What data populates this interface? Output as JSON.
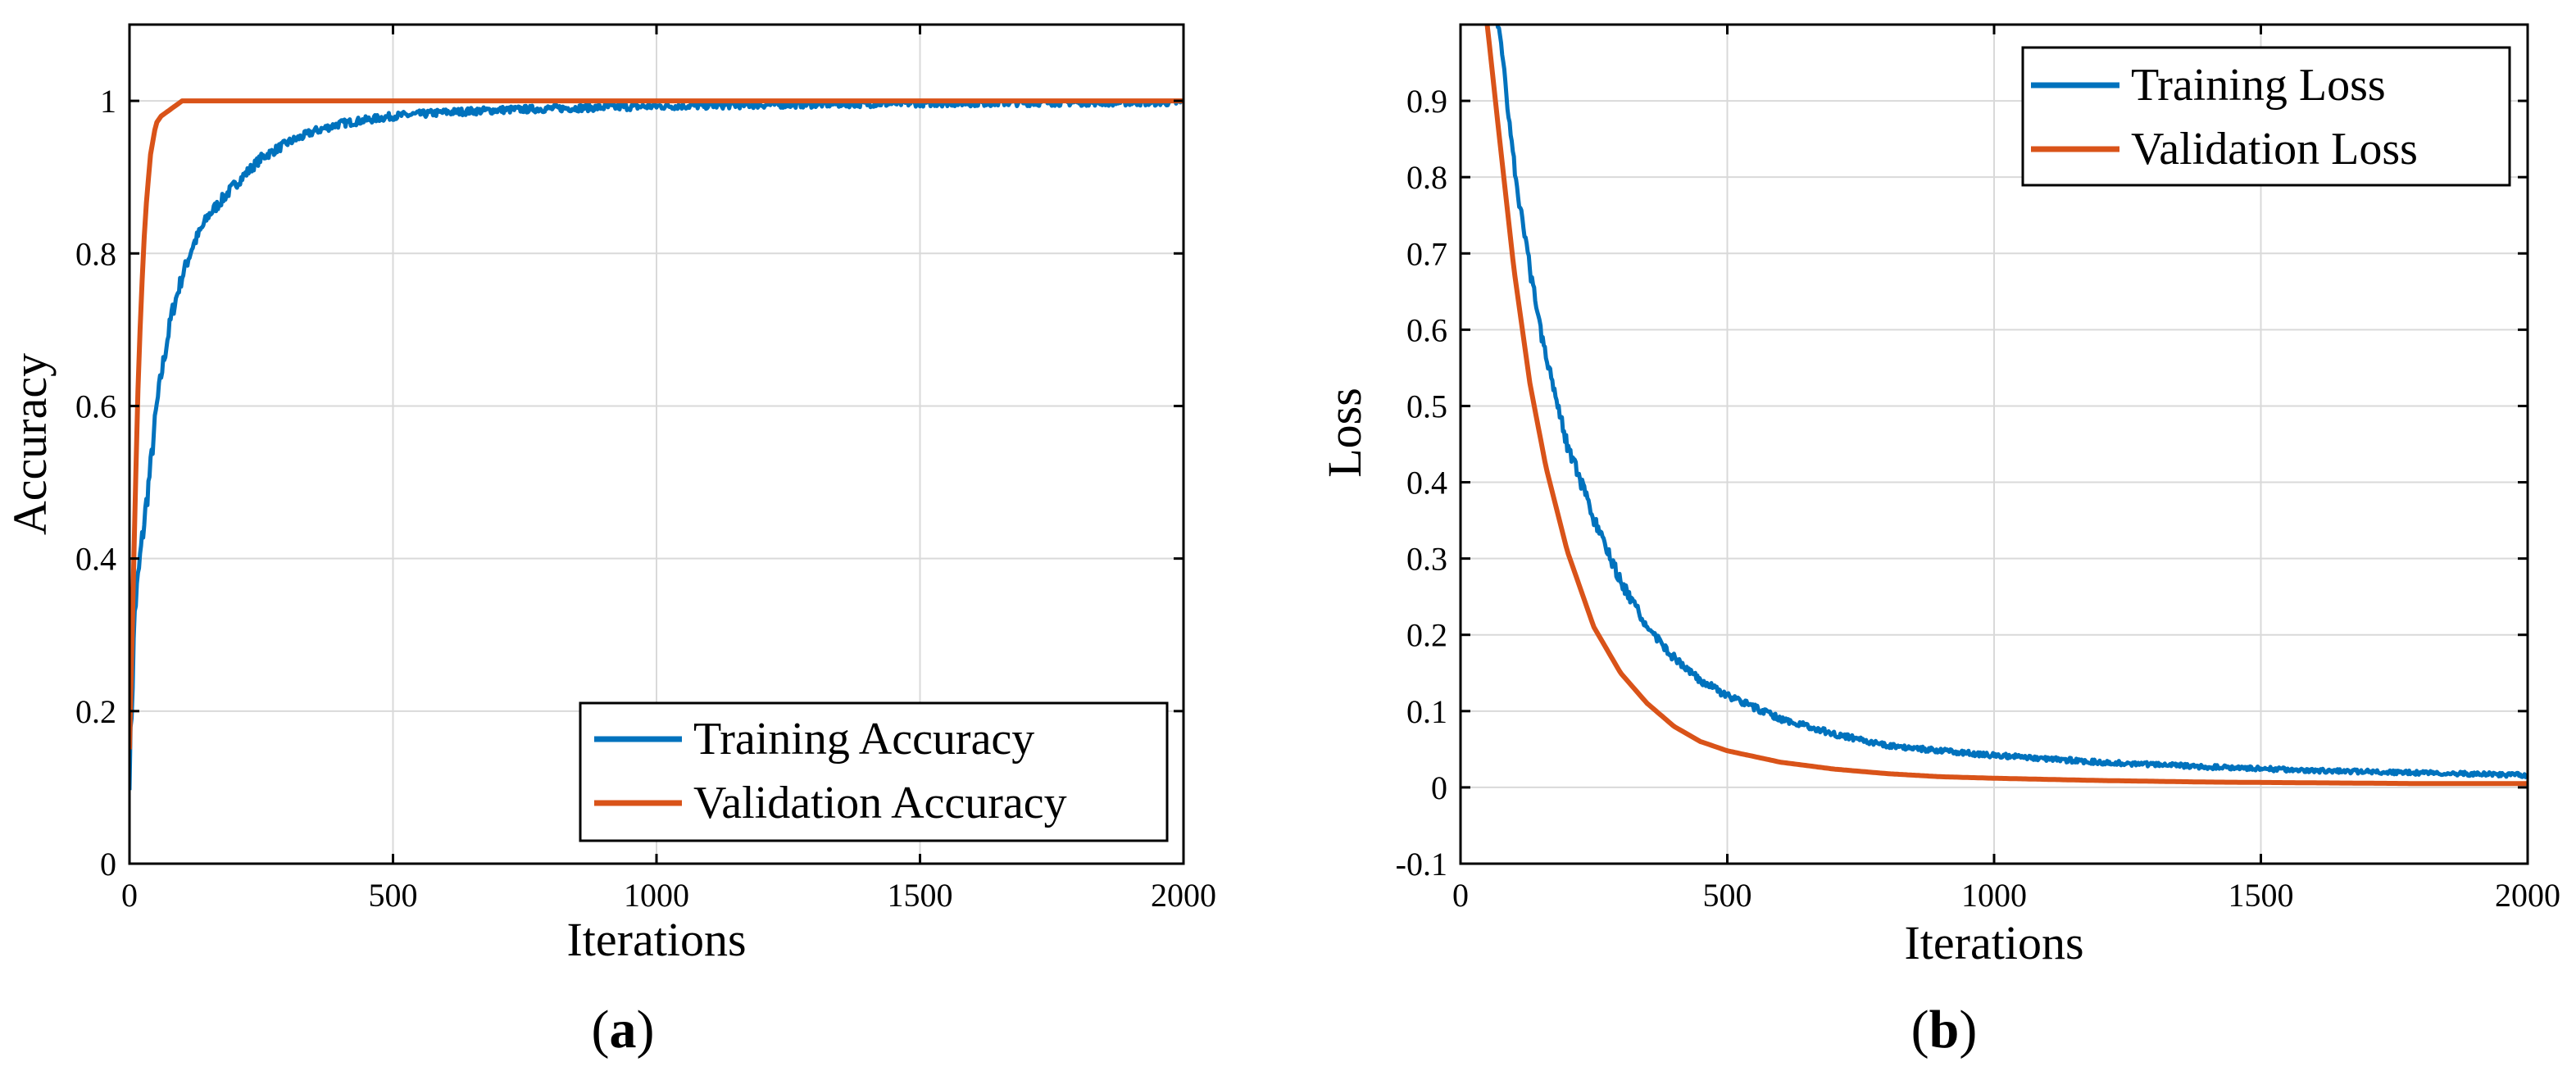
{
  "chart_data": [
    {
      "type": "line",
      "panel": "a",
      "caption": {
        "open": "(",
        "letter": "a",
        "close": ")"
      },
      "xlabel": "Iterations",
      "ylabel": "Accuracy",
      "xlim": [
        0,
        2000
      ],
      "ylim": [
        0,
        1.1
      ],
      "xticks": [
        0,
        500,
        1000,
        1500,
        2000
      ],
      "yticks": [
        0,
        0.2,
        0.4,
        0.6,
        0.8,
        1
      ],
      "xtick_labels": [
        "0",
        "500",
        "1000",
        "1500",
        "2000"
      ],
      "ytick_labels": [
        "0",
        "0.2",
        "0.4",
        "0.6",
        "0.8",
        "1"
      ],
      "grid": true,
      "legend_position": "bottom-right",
      "series": [
        {
          "name": "Training Accuracy",
          "color": "#0072BD",
          "noise": 0.018,
          "x": [
            0,
            5,
            10,
            20,
            30,
            40,
            50,
            60,
            70,
            80,
            100,
            120,
            150,
            200,
            250,
            300,
            350,
            400,
            450,
            500,
            600,
            700,
            800,
            1000,
            1200,
            1500,
            1800,
            2000
          ],
          "y": [
            0.12,
            0.22,
            0.33,
            0.4,
            0.46,
            0.52,
            0.59,
            0.64,
            0.68,
            0.72,
            0.77,
            0.81,
            0.85,
            0.89,
            0.925,
            0.945,
            0.96,
            0.97,
            0.975,
            0.98,
            0.985,
            0.988,
            0.99,
            0.993,
            0.995,
            0.997,
            0.998,
            0.998
          ]
        },
        {
          "name": "Validation Accuracy",
          "color": "#D95319",
          "noise": 0,
          "x": [
            0,
            5,
            10,
            15,
            20,
            25,
            30,
            40,
            50,
            60,
            70,
            80,
            90,
            100,
            2000
          ],
          "y": [
            0.15,
            0.3,
            0.45,
            0.6,
            0.7,
            0.78,
            0.85,
            0.93,
            0.97,
            0.98,
            0.985,
            0.99,
            0.995,
            1.0,
            1.0
          ]
        }
      ]
    },
    {
      "type": "line",
      "panel": "b",
      "caption": {
        "open": "(",
        "letter": "b",
        "close": ")"
      },
      "xlabel": "Iterations",
      "ylabel": "Loss",
      "xlim": [
        0,
        2000
      ],
      "ylim": [
        -0.1,
        1.0
      ],
      "xticks": [
        0,
        500,
        1000,
        1500,
        2000
      ],
      "yticks": [
        -0.1,
        0,
        0.1,
        0.2,
        0.3,
        0.4,
        0.5,
        0.6,
        0.7,
        0.8,
        0.9
      ],
      "xtick_labels": [
        "0",
        "500",
        "1000",
        "1500",
        "2000"
      ],
      "ytick_labels": [
        "-0.1",
        "0",
        "0.1",
        "0.2",
        "0.3",
        "0.4",
        "0.5",
        "0.6",
        "0.7",
        "0.8",
        "0.9"
      ],
      "grid": true,
      "legend_position": "top-right",
      "series": [
        {
          "name": "Training Loss",
          "color": "#0072BD",
          "noise": 0.012,
          "x": [
            60,
            80,
            100,
            120,
            150,
            200,
            250,
            300,
            350,
            400,
            450,
            500,
            600,
            700,
            800,
            900,
            1000,
            1200,
            1400,
            1600,
            1800,
            2000
          ],
          "y": [
            1.05,
            0.95,
            0.82,
            0.72,
            0.6,
            0.45,
            0.35,
            0.27,
            0.21,
            0.17,
            0.14,
            0.12,
            0.09,
            0.07,
            0.055,
            0.048,
            0.042,
            0.033,
            0.027,
            0.022,
            0.019,
            0.016
          ]
        },
        {
          "name": "Validation Loss",
          "color": "#D95319",
          "noise": 0,
          "x": [
            50,
            70,
            100,
            130,
            160,
            200,
            250,
            300,
            350,
            400,
            450,
            500,
            600,
            700,
            800,
            900,
            1000,
            1200,
            1400,
            1600,
            1800,
            2000
          ],
          "y": [
            1.0,
            0.87,
            0.68,
            0.53,
            0.42,
            0.31,
            0.21,
            0.15,
            0.11,
            0.08,
            0.06,
            0.048,
            0.033,
            0.024,
            0.018,
            0.014,
            0.012,
            0.009,
            0.007,
            0.006,
            0.005,
            0.005
          ]
        }
      ]
    }
  ]
}
